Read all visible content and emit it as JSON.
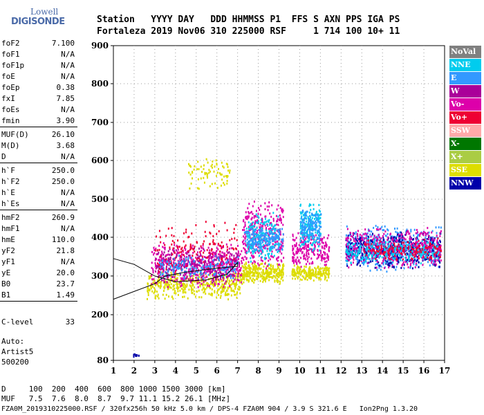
{
  "logo": {
    "line1": "Lowell",
    "line2": "DIGISONDE"
  },
  "header": {
    "row1": "Station   YYYY DAY   DDD HHMMSS P1  FFS S AXN PPS IGA PS",
    "row2": "Fortaleza 2019 Nov06 310 225000 RSF     1 714 100 10+ 11"
  },
  "params": [
    {
      "label": "foF2",
      "value": "7.100"
    },
    {
      "label": "foF1",
      "value": "N/A"
    },
    {
      "label": "foF1p",
      "value": "N/A"
    },
    {
      "label": "foE",
      "value": "N/A"
    },
    {
      "label": "foEp",
      "value": "0.38"
    },
    {
      "label": "fxI",
      "value": "7.85"
    },
    {
      "label": "foEs",
      "value": "N/A"
    },
    {
      "label": "fmin",
      "value": "3.90"
    },
    {
      "label": "MUF(D)",
      "value": "26.10"
    },
    {
      "label": "M(D)",
      "value": "3.68"
    },
    {
      "label": "D",
      "value": "N/A"
    },
    {
      "label": "h`F",
      "value": "250.0"
    },
    {
      "label": "h`F2",
      "value": "250.0"
    },
    {
      "label": "h`E",
      "value": "N/A"
    },
    {
      "label": "h`Es",
      "value": "N/A"
    },
    {
      "label": "hmF2",
      "value": "260.9"
    },
    {
      "label": "hmF1",
      "value": "N/A"
    },
    {
      "label": "hmE",
      "value": "110.0"
    },
    {
      "label": "yF2",
      "value": "21.8"
    },
    {
      "label": "yF1",
      "value": "N/A"
    },
    {
      "label": "yE",
      "value": "20.0"
    },
    {
      "label": "B0",
      "value": "23.7"
    },
    {
      "label": "B1",
      "value": "1.49"
    }
  ],
  "clevel": {
    "label": "C-level",
    "value": "33"
  },
  "auto": {
    "line1": "Auto:",
    "line2": "Artist5",
    "line3": "500200"
  },
  "legend": [
    {
      "label": "NoVal",
      "color": "#808080"
    },
    {
      "label": "NNE",
      "color": "#00ccee"
    },
    {
      "label": "E",
      "color": "#3399ff"
    },
    {
      "label": "W",
      "color": "#aa0099"
    },
    {
      "label": "Vo-",
      "color": "#dd00aa"
    },
    {
      "label": "Vo+",
      "color": "#ee0033"
    },
    {
      "label": "SSW",
      "color": "#ffaaaa"
    },
    {
      "label": "X-",
      "color": "#007700"
    },
    {
      "label": "X+",
      "color": "#aacc44"
    },
    {
      "label": "SSE",
      "color": "#dddd00"
    },
    {
      "label": "NNW",
      "color": "#0000aa"
    }
  ],
  "bottom": {
    "row1": "D     100  200  400  600  800 1000 1500 3000 [km]",
    "row2": "MUF   7.5  7.6  8.0  8.7  9.7 11.1 15.2 26.1 [MHz]"
  },
  "footer": "FZA0M_2019310225000.RSF / 320fx256h 50 kHz 5.0 km / DPS-4 FZA0M 904 / 3.9 S 321.6 E   Ion2Png 1.3.20",
  "chart_data": {
    "type": "scatter",
    "xlim": [
      1,
      17
    ],
    "ylim": [
      80,
      900
    ],
    "xticks": [
      "1",
      "2",
      "3",
      "4",
      "5",
      "6",
      "7",
      "8",
      "9",
      "10",
      "11",
      "12",
      "13",
      "14",
      "15",
      "16",
      "17"
    ],
    "yticks": [
      "80",
      "200",
      "300",
      "400",
      "500",
      "600",
      "700",
      "800",
      "900"
    ],
    "grid": true,
    "clusters": [
      {
        "x": [
          2.6,
          7.2
        ],
        "y": [
          240,
          320
        ],
        "color": "#dddd00",
        "n": 450
      },
      {
        "x": [
          2.8,
          7.2
        ],
        "y": [
          270,
          390
        ],
        "color": "#dd00aa",
        "n": 500
      },
      {
        "x": [
          3.0,
          7.0
        ],
        "y": [
          280,
          380
        ],
        "color": "#aa0099",
        "n": 250
      },
      {
        "x": [
          3.0,
          7.0
        ],
        "y": [
          300,
          450
        ],
        "color": "#ee0033",
        "n": 150
      },
      {
        "x": [
          3.2,
          7.0
        ],
        "y": [
          290,
          360
        ],
        "color": "#3399ff",
        "n": 150
      },
      {
        "x": [
          4.6,
          6.6
        ],
        "y": [
          520,
          620
        ],
        "color": "#dddd00",
        "n": 80
      },
      {
        "x": [
          7.2,
          9.2
        ],
        "y": [
          280,
          340
        ],
        "color": "#dddd00",
        "n": 300
      },
      {
        "x": [
          7.2,
          9.2
        ],
        "y": [
          320,
          500
        ],
        "color": "#dd00aa",
        "n": 350
      },
      {
        "x": [
          7.4,
          9.0
        ],
        "y": [
          330,
          470
        ],
        "color": "#00ccee",
        "n": 200
      },
      {
        "x": [
          7.3,
          9.2
        ],
        "y": [
          360,
          430
        ],
        "color": "#3399ff",
        "n": 150
      },
      {
        "x": [
          9.6,
          11.4
        ],
        "y": [
          290,
          330
        ],
        "color": "#dddd00",
        "n": 200
      },
      {
        "x": [
          9.6,
          11.4
        ],
        "y": [
          320,
          420
        ],
        "color": "#dd00aa",
        "n": 220
      },
      {
        "x": [
          10.0,
          11.0
        ],
        "y": [
          360,
          500
        ],
        "color": "#00ccee",
        "n": 180
      },
      {
        "x": [
          10.0,
          11.0
        ],
        "y": [
          380,
          480
        ],
        "color": "#3399ff",
        "n": 120
      },
      {
        "x": [
          12.2,
          16.8
        ],
        "y": [
          310,
          440
        ],
        "color": "#3399ff",
        "n": 500
      },
      {
        "x": [
          12.2,
          16.8
        ],
        "y": [
          320,
          420
        ],
        "color": "#0000aa",
        "n": 450
      },
      {
        "x": [
          12.2,
          16.8
        ],
        "y": [
          320,
          430
        ],
        "color": "#dd00aa",
        "n": 450
      },
      {
        "x": [
          12.2,
          16.8
        ],
        "y": [
          330,
          400
        ],
        "color": "#00ccee",
        "n": 250
      },
      {
        "x": [
          13.0,
          16.8
        ],
        "y": [
          340,
          400
        ],
        "color": "#ee0033",
        "n": 150
      },
      {
        "x": [
          1.8,
          2.2
        ],
        "y": [
          92,
          100
        ],
        "color": "#0000aa",
        "n": 12
      }
    ],
    "trace": [
      [
        1.0,
        240
      ],
      [
        2.0,
        260
      ],
      [
        3.0,
        280
      ],
      [
        3.5,
        300
      ],
      [
        4.5,
        310
      ],
      [
        6.0,
        320
      ],
      [
        7.0,
        325
      ],
      [
        7.0,
        335
      ],
      [
        6.5,
        305
      ],
      [
        5.5,
        290
      ],
      [
        4.0,
        285
      ],
      [
        3.0,
        300
      ],
      [
        2.0,
        330
      ],
      [
        1.0,
        345
      ]
    ]
  }
}
